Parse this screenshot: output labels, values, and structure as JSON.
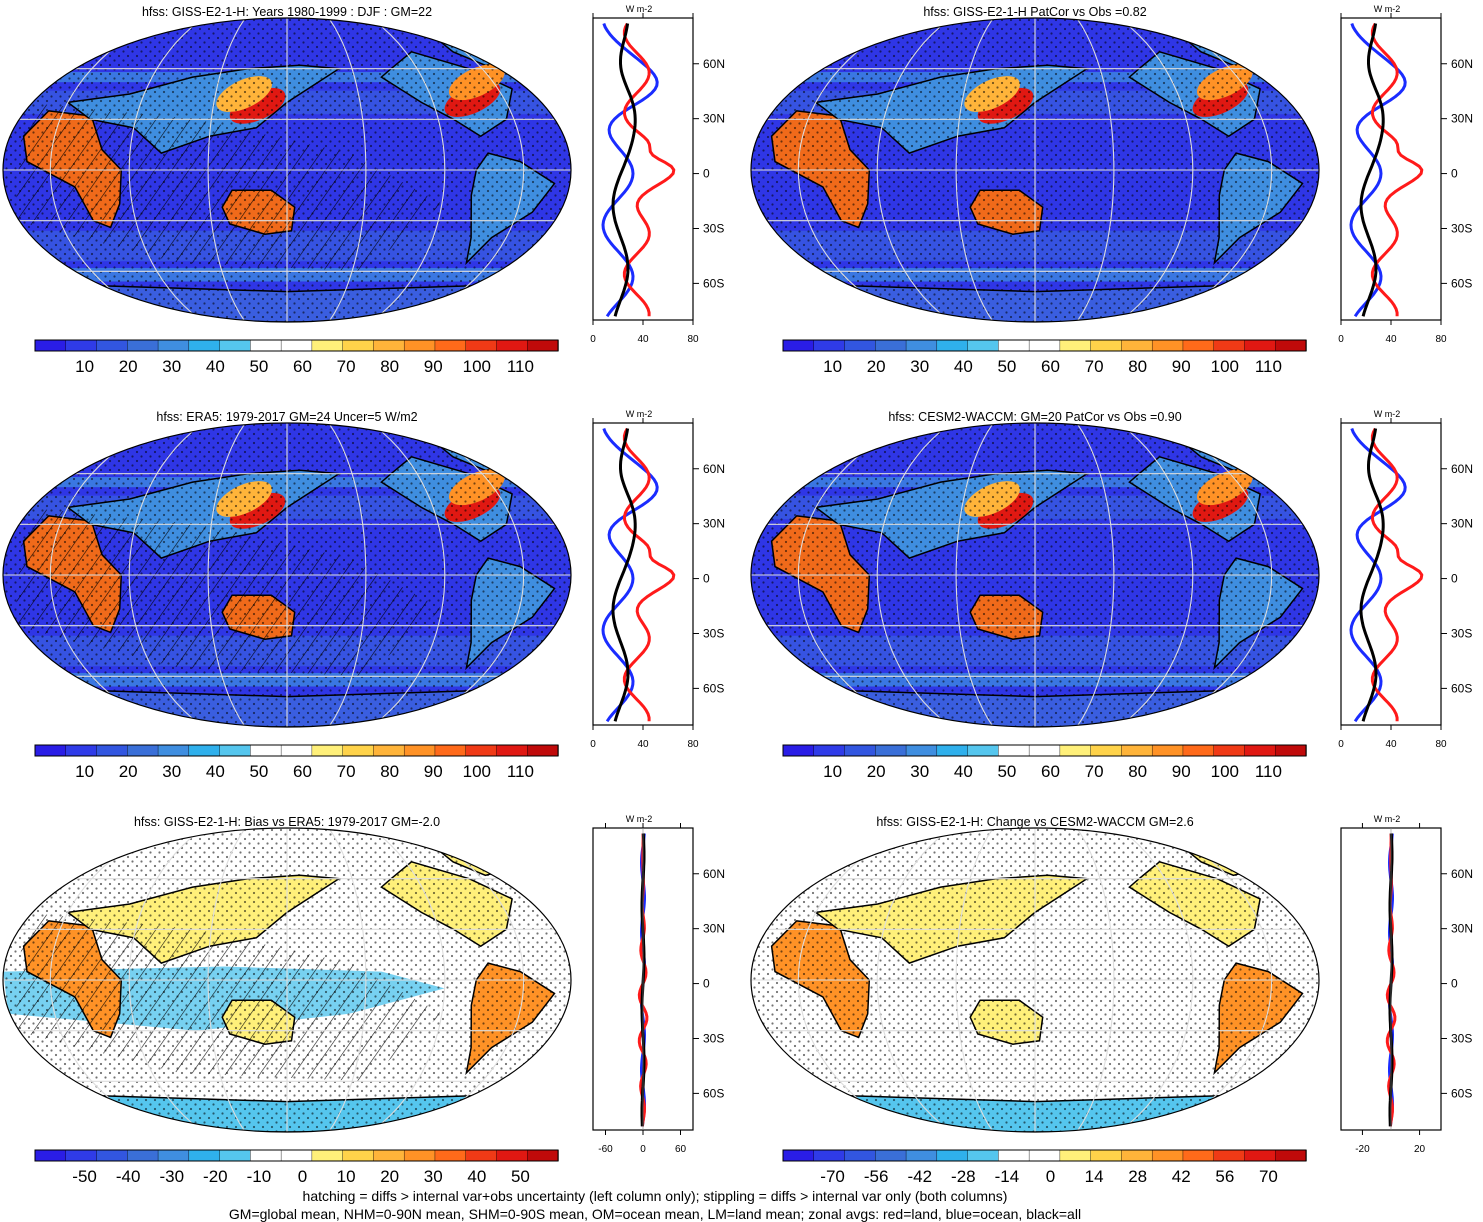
{
  "panels": [
    {
      "title": "hfss: GISS-E2-1-H: Years 1980-1999 : DJF : GM=22",
      "colorbar_labels": [
        "10",
        "20",
        "30",
        "40",
        "50",
        "60",
        "70",
        "80",
        "90",
        "100",
        "110"
      ],
      "colorbar_scheme": "abs",
      "hatching": true,
      "stipple": true,
      "zonal": {
        "unit": "W m-2",
        "xticks": [
          "0",
          "40",
          "80"
        ],
        "xlim": [
          0,
          80
        ],
        "type": "abs",
        "lat_labels": [
          "60N",
          "30N",
          "0",
          "30S",
          "60S"
        ]
      }
    },
    {
      "title": "hfss: GISS-E2-1-H PatCor vs Obs =0.82",
      "colorbar_labels": [
        "10",
        "20",
        "30",
        "40",
        "50",
        "60",
        "70",
        "80",
        "90",
        "100",
        "110"
      ],
      "colorbar_scheme": "abs",
      "hatching": false,
      "stipple": true,
      "zonal": {
        "unit": "W m-2",
        "xticks": [
          "0",
          "40",
          "80"
        ],
        "xlim": [
          0,
          80
        ],
        "type": "abs",
        "lat_labels": [
          "60N",
          "30N",
          "0",
          "30S",
          "60S"
        ]
      }
    },
    {
      "title": "hfss: ERA5: 1979-2017 GM=24 Uncer=5 W/m2",
      "colorbar_labels": [
        "10",
        "20",
        "30",
        "40",
        "50",
        "60",
        "70",
        "80",
        "90",
        "100",
        "110"
      ],
      "colorbar_scheme": "abs",
      "hatching": true,
      "stipple": true,
      "zonal": {
        "unit": "W m-2",
        "xticks": [
          "0",
          "40",
          "80"
        ],
        "xlim": [
          0,
          80
        ],
        "type": "abs",
        "lat_labels": [
          "60N",
          "30N",
          "0",
          "30S",
          "60S"
        ]
      }
    },
    {
      "title": "hfss: CESM2-WACCM: GM=20 PatCor vs Obs =0.90",
      "colorbar_labels": [
        "10",
        "20",
        "30",
        "40",
        "50",
        "60",
        "70",
        "80",
        "90",
        "100",
        "110"
      ],
      "colorbar_scheme": "abs",
      "hatching": false,
      "stipple": true,
      "zonal": {
        "unit": "W m-2",
        "xticks": [
          "0",
          "40",
          "80"
        ],
        "xlim": [
          0,
          80
        ],
        "type": "abs",
        "lat_labels": [
          "60N",
          "30N",
          "0",
          "30S",
          "60S"
        ]
      }
    },
    {
      "title": "hfss: GISS-E2-1-H: Bias vs ERA5: 1979-2017 GM=-2.0",
      "colorbar_labels": [
        "-50",
        "-40",
        "-30",
        "-20",
        "-10",
        "0",
        "10",
        "20",
        "30",
        "40",
        "50"
      ],
      "colorbar_scheme": "diff",
      "hatching": true,
      "stipple": true,
      "zonal": {
        "unit": "W m-2",
        "xticks": [
          "-60",
          "0",
          "60"
        ],
        "xlim": [
          -80,
          80
        ],
        "type": "diff",
        "lat_labels": [
          "60N",
          "30N",
          "0",
          "30S",
          "60S"
        ]
      }
    },
    {
      "title": "hfss: GISS-E2-1-H: Change vs CESM2-WACCM GM=2.6",
      "colorbar_labels": [
        "-70",
        "-56",
        "-42",
        "-28",
        "-14",
        "0",
        "14",
        "28",
        "42",
        "56",
        "70"
      ],
      "colorbar_scheme": "diff",
      "hatching": false,
      "stipple": true,
      "zonal": {
        "unit": "W m-2",
        "xticks": [
          "-20",
          "20"
        ],
        "xlim": [
          -35,
          35
        ],
        "type": "diff",
        "lat_labels": [
          "60N",
          "30N",
          "0",
          "30S",
          "60S"
        ]
      }
    }
  ],
  "footer": {
    "line1": "hatching = diffs > internal var+obs uncertainty (left column only); stippling = diffs > internal var only (both columns)",
    "line2": "GM=global mean, NHM=0-90N mean, SHM=0-90S mean, OM=ocean mean, LM=land mean; zonal avgs: red=land, blue=ocean, black=all"
  },
  "colors": {
    "abs_scale": [
      "#2a1de6",
      "#2f3be8",
      "#3256e0",
      "#3a6fd8",
      "#3f8ee0",
      "#2fb0ec",
      "#55c6ee",
      "#ffffff",
      "#ffffff",
      "#fff07a",
      "#ffd34a",
      "#ffb43a",
      "#ff9226",
      "#ff6a1a",
      "#f03a16",
      "#e01812",
      "#c00a0a"
    ],
    "diff_scale": [
      "#2a1de6",
      "#2f3be8",
      "#3256e0",
      "#3a6fd8",
      "#3f8ee0",
      "#2fb0ec",
      "#55c6ee",
      "#ffffff",
      "#ffffff",
      "#fff07a",
      "#ffd34a",
      "#ffb43a",
      "#ff9226",
      "#ff6a1a",
      "#f03a16",
      "#e01812",
      "#c00a0a"
    ],
    "land_line": "#ff1a1a",
    "ocean_line": "#1a2cff",
    "all_line": "#000000"
  }
}
